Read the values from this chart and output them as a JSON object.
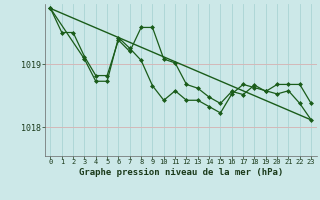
{
  "title": "Graphe pression niveau de la mer (hPa)",
  "bg_color": "#cce8e8",
  "grid_v_color": "#aad4d4",
  "grid_h_color": "#d4b8b8",
  "line_color": "#1a5c1a",
  "x_ticks": [
    0,
    1,
    2,
    3,
    4,
    5,
    6,
    7,
    8,
    9,
    10,
    11,
    12,
    13,
    14,
    15,
    16,
    17,
    18,
    19,
    20,
    21,
    22,
    23
  ],
  "ylim": [
    1017.55,
    1019.95
  ],
  "yticks": [
    1018,
    1019
  ],
  "series1_x": [
    0,
    1,
    2,
    3,
    4,
    5,
    6,
    7,
    8,
    9,
    10,
    11,
    12,
    13,
    14,
    15,
    16,
    17,
    18,
    19,
    20,
    21,
    22,
    23
  ],
  "series1_y": [
    1019.88,
    1019.5,
    1019.5,
    1019.12,
    1018.82,
    1018.82,
    1019.38,
    1019.2,
    1019.58,
    1019.58,
    1019.08,
    1019.02,
    1018.68,
    1018.62,
    1018.48,
    1018.38,
    1018.57,
    1018.52,
    1018.67,
    1018.57,
    1018.68,
    1018.68,
    1018.68,
    1018.38
  ],
  "series2_x": [
    0,
    3,
    4,
    5,
    6,
    7,
    8,
    9,
    10,
    11,
    12,
    13,
    14,
    15,
    16,
    17,
    18,
    19,
    20,
    21,
    22,
    23
  ],
  "series2_y": [
    1019.88,
    1019.08,
    1018.73,
    1018.73,
    1019.42,
    1019.25,
    1019.06,
    1018.66,
    1018.43,
    1018.58,
    1018.43,
    1018.43,
    1018.33,
    1018.23,
    1018.53,
    1018.68,
    1018.63,
    1018.58,
    1018.53,
    1018.58,
    1018.38,
    1018.12
  ],
  "trend_x": [
    0,
    23
  ],
  "trend_y": [
    1019.88,
    1018.12
  ]
}
